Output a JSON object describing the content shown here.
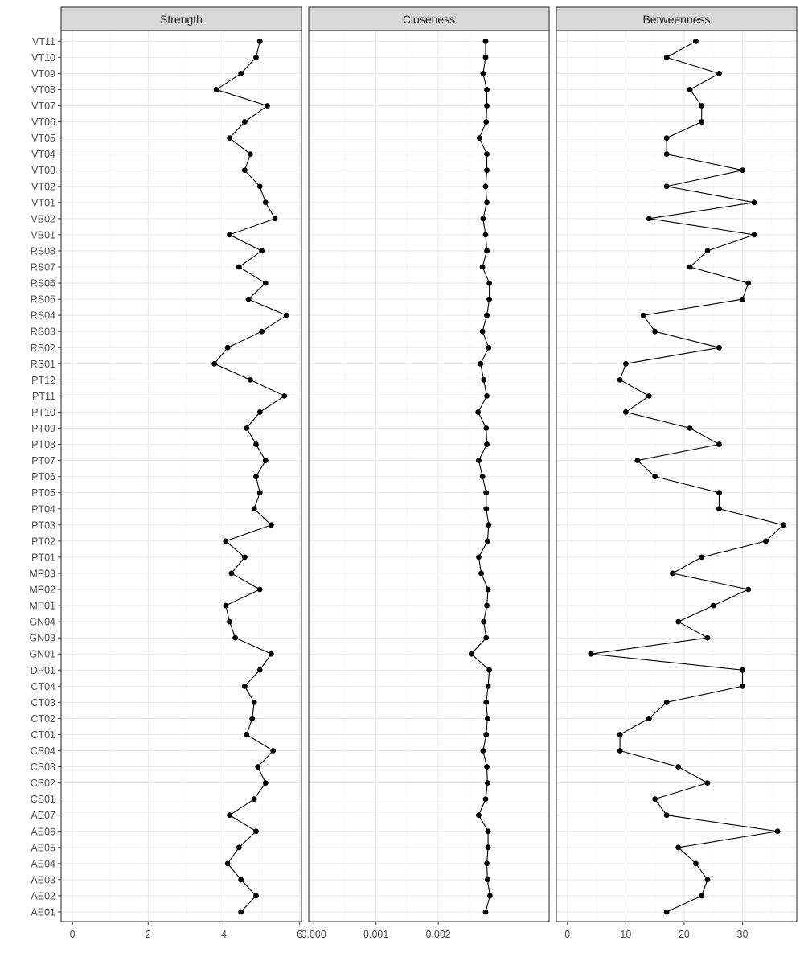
{
  "chart_data": {
    "type": "line",
    "orientation": "horizontal",
    "nodes": [
      "AE01",
      "AE02",
      "AE03",
      "AE04",
      "AE05",
      "AE06",
      "AE07",
      "CS01",
      "CS02",
      "CS03",
      "CS04",
      "CT01",
      "CT02",
      "CT03",
      "CT04",
      "DP01",
      "GN01",
      "GN03",
      "GN04",
      "MP01",
      "MP02",
      "MP03",
      "PT01",
      "PT02",
      "PT03",
      "PT04",
      "PT05",
      "PT06",
      "PT07",
      "PT08",
      "PT09",
      "PT10",
      "PT11",
      "PT12",
      "RS01",
      "RS02",
      "RS03",
      "RS04",
      "RS05",
      "RS06",
      "RS07",
      "RS08",
      "VB01",
      "VB02",
      "VT01",
      "VT02",
      "VT03",
      "VT04",
      "VT05",
      "VT06",
      "VT07",
      "VT08",
      "VT09",
      "VT10",
      "VT11"
    ],
    "panels": [
      {
        "title": "Strength",
        "xlim": [
          -0.3,
          6.05
        ],
        "ticks": [
          0,
          2,
          4,
          6
        ],
        "tick_labels": [
          "0",
          "2",
          "4",
          "6"
        ],
        "values": [
          4.45,
          4.85,
          4.45,
          4.1,
          4.4,
          4.85,
          4.15,
          4.8,
          5.1,
          4.9,
          5.3,
          4.6,
          4.75,
          4.8,
          4.55,
          4.95,
          5.25,
          4.3,
          4.15,
          4.05,
          4.95,
          4.2,
          4.55,
          4.05,
          5.25,
          4.8,
          4.95,
          4.85,
          5.1,
          4.85,
          4.6,
          4.95,
          5.6,
          4.7,
          3.75,
          4.1,
          5.0,
          5.65,
          4.65,
          5.1,
          4.4,
          5.0,
          4.15,
          5.35,
          5.1,
          4.95,
          4.55,
          4.7,
          4.15,
          4.55,
          5.15,
          3.8,
          4.45,
          4.85,
          4.95
        ]
      },
      {
        "title": "Closeness",
        "xlim": [
          -8e-05,
          0.00378
        ],
        "ticks": [
          0,
          0.001,
          0.002
        ],
        "tick_labels": [
          "0.000",
          "0.001",
          "0.002"
        ],
        "values": [
          0.00276,
          0.00283,
          0.00279,
          0.00278,
          0.0028,
          0.0028,
          0.00265,
          0.00276,
          0.00279,
          0.00278,
          0.00272,
          0.00277,
          0.00279,
          0.00277,
          0.0028,
          0.00282,
          0.00253,
          0.00277,
          0.00273,
          0.00278,
          0.0028,
          0.00269,
          0.00265,
          0.00279,
          0.00281,
          0.00277,
          0.00277,
          0.00271,
          0.00265,
          0.00278,
          0.00277,
          0.00264,
          0.00278,
          0.00273,
          0.00268,
          0.00281,
          0.00271,
          0.00278,
          0.00282,
          0.00282,
          0.00271,
          0.00278,
          0.00276,
          0.00272,
          0.00278,
          0.00276,
          0.00278,
          0.00278,
          0.00266,
          0.00277,
          0.00278,
          0.00278,
          0.00272,
          0.00276,
          0.00276
        ]
      },
      {
        "title": "Betweenness",
        "xlim": [
          -1.9,
          39.3
        ],
        "ticks": [
          0,
          10,
          20,
          30
        ],
        "tick_labels": [
          "0",
          "10",
          "20",
          "30"
        ],
        "values": [
          17,
          23,
          24,
          22,
          19,
          36,
          17,
          15,
          24,
          19,
          9,
          9,
          14,
          17,
          30,
          30,
          4,
          24,
          19,
          25,
          31,
          18,
          23,
          34,
          37,
          26,
          26,
          15,
          12,
          26,
          21,
          10,
          14,
          9,
          10,
          26,
          15,
          13,
          30,
          31,
          21,
          24,
          32,
          14,
          32,
          17,
          30,
          17,
          17,
          23,
          23,
          21,
          26,
          17,
          22
        ]
      }
    ],
    "grid": true,
    "legend": "none",
    "colors": {
      "point": "#000000",
      "line": "#000000",
      "strip_fill": "#d9d9d9",
      "panel_border": "#333333",
      "grid_major": "#ebebeb",
      "grid_minor": "#f5f5f5",
      "tick_text": "#4d4d4d",
      "strip_text": "#1a1a1a"
    }
  }
}
